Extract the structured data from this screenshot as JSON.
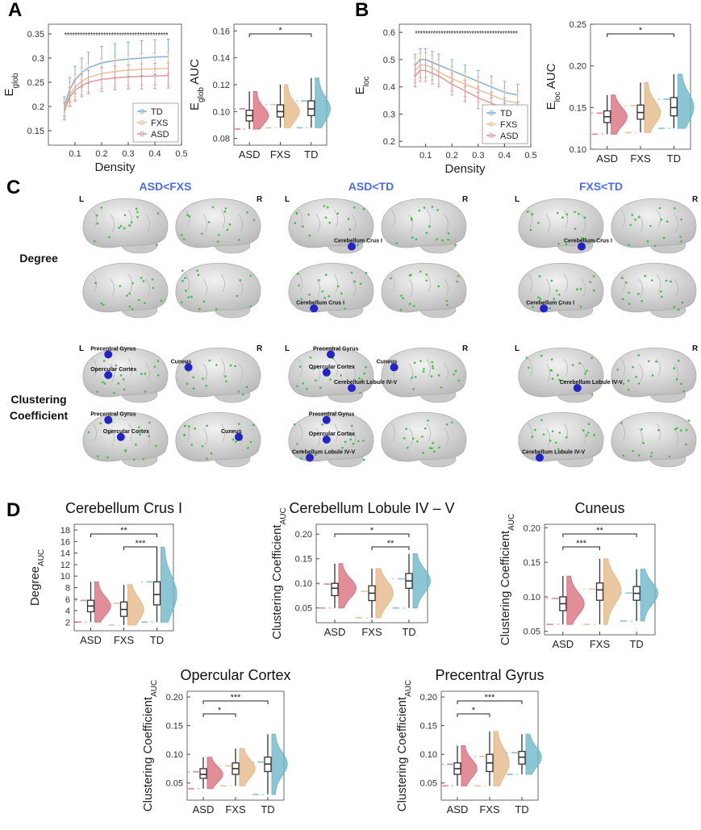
{
  "chart_data": [
    {
      "type": "line",
      "panel": "A",
      "xlabel": "Density",
      "ylabel": "E",
      "ylabel_sub": "glob",
      "x": [
        0.06,
        0.08,
        0.1,
        0.125,
        0.15,
        0.2,
        0.25,
        0.3,
        0.35,
        0.4,
        0.45
      ],
      "xlim": [
        0,
        0.5
      ],
      "xticks": [
        0.1,
        0.2,
        0.3,
        0.4,
        0.5
      ],
      "ylim": [
        0.12,
        0.37
      ],
      "yticks": [
        0.15,
        0.2,
        0.25,
        0.3,
        0.35
      ],
      "legend": "lower right",
      "annotation": {
        "text": "****************************************",
        "y": 0.35
      },
      "series": [
        {
          "name": "TD",
          "color": "#7fb3d9",
          "values": [
            0.2,
            0.235,
            0.255,
            0.27,
            0.28,
            0.29,
            0.295,
            0.298,
            0.3,
            0.302,
            0.303
          ],
          "errors": [
            0.02,
            0.025,
            0.028,
            0.03,
            0.032,
            0.034,
            0.035,
            0.035,
            0.036,
            0.036,
            0.036
          ]
        },
        {
          "name": "FXS",
          "color": "#e8c19a",
          "values": [
            0.195,
            0.225,
            0.24,
            0.252,
            0.26,
            0.268,
            0.272,
            0.275,
            0.277,
            0.278,
            0.279
          ],
          "errors": [
            0.02,
            0.024,
            0.026,
            0.028,
            0.03,
            0.031,
            0.032,
            0.032,
            0.032,
            0.033,
            0.033
          ]
        },
        {
          "name": "ASD",
          "color": "#e09a9a",
          "values": [
            0.19,
            0.22,
            0.233,
            0.243,
            0.25,
            0.256,
            0.259,
            0.261,
            0.262,
            0.263,
            0.264
          ],
          "errors": [
            0.018,
            0.02,
            0.022,
            0.023,
            0.024,
            0.025,
            0.025,
            0.025,
            0.026,
            0.026,
            0.026
          ]
        }
      ]
    },
    {
      "type": "box",
      "ylabel": "E",
      "ylabel_sub": "glob",
      "ylabel_suffix": " AUC",
      "categories": [
        "ASD",
        "FXS",
        "TD"
      ],
      "colors": [
        "#d9727f",
        "#e6b989",
        "#6fb8cb"
      ],
      "ylim": [
        0.075,
        0.165
      ],
      "yticks": [
        0.08,
        {
          "value": 0.1,
          "label": "0.10"
        },
        0.12,
        0.14,
        0.16
      ],
      "median": [
        0.097,
        0.1,
        0.102
      ],
      "q1": [
        0.093,
        0.096,
        0.097
      ],
      "q3": [
        0.101,
        0.105,
        0.108
      ],
      "whisker_low": [
        0.087,
        0.088,
        0.088
      ],
      "whisker_high": [
        0.115,
        0.12,
        0.125
      ],
      "brackets": [
        {
          "from": "ASD",
          "to": "TD",
          "label": "*"
        }
      ]
    },
    {
      "type": "line",
      "panel": "B",
      "xlabel": "Density",
      "ylabel": "E",
      "ylabel_sub": "loc",
      "x": [
        0.06,
        0.08,
        0.1,
        0.125,
        0.15,
        0.2,
        0.25,
        0.3,
        0.35,
        0.4,
        0.45
      ],
      "xlim": [
        0,
        0.5
      ],
      "xticks": [
        0.1,
        0.2,
        0.3,
        0.4,
        0.5
      ],
      "ylim": [
        0.18,
        0.63
      ],
      "yticks": [
        0.2,
        0.3,
        0.4,
        0.5,
        0.6
      ],
      "legend": "lower right",
      "annotation": {
        "text": "****************************************",
        "y": 0.6
      },
      "series": [
        {
          "name": "TD",
          "color": "#7fb3d9",
          "values": [
            0.48,
            0.5,
            0.5,
            0.49,
            0.48,
            0.46,
            0.44,
            0.42,
            0.4,
            0.38,
            0.37
          ],
          "errors": [
            0.04,
            0.04,
            0.04,
            0.04,
            0.04,
            0.04,
            0.04,
            0.04,
            0.04,
            0.04,
            0.04
          ]
        },
        {
          "name": "FXS",
          "color": "#e8c19a",
          "values": [
            0.46,
            0.48,
            0.48,
            0.47,
            0.455,
            0.43,
            0.41,
            0.39,
            0.37,
            0.35,
            0.34
          ],
          "errors": [
            0.045,
            0.045,
            0.045,
            0.045,
            0.045,
            0.045,
            0.045,
            0.045,
            0.045,
            0.045,
            0.045
          ]
        },
        {
          "name": "ASD",
          "color": "#e09a9a",
          "values": [
            0.44,
            0.46,
            0.46,
            0.45,
            0.44,
            0.41,
            0.385,
            0.36,
            0.34,
            0.32,
            0.305
          ],
          "errors": [
            0.04,
            0.04,
            0.04,
            0.04,
            0.04,
            0.04,
            0.04,
            0.04,
            0.04,
            0.04,
            0.04
          ]
        }
      ]
    },
    {
      "type": "box",
      "ylabel": "E",
      "ylabel_sub": "loc",
      "ylabel_suffix": " AUC",
      "categories": [
        "ASD",
        "FXS",
        "TD"
      ],
      "colors": [
        "#d9727f",
        "#e6b989",
        "#6fb8cb"
      ],
      "ylim": [
        0.1,
        0.25
      ],
      "yticks": [
        {
          "value": 0.1,
          "label": "0.10"
        },
        0.15,
        {
          "value": 0.2,
          "label": "0.20"
        },
        0.25
      ],
      "median": [
        0.139,
        0.144,
        0.15
      ],
      "q1": [
        0.132,
        0.136,
        0.14
      ],
      "q3": [
        0.146,
        0.153,
        0.162
      ],
      "whisker_low": [
        0.118,
        0.12,
        0.125
      ],
      "whisker_high": [
        0.165,
        0.18,
        0.19
      ],
      "brackets": [
        {
          "from": "ASD",
          "to": "TD",
          "label": "*"
        }
      ]
    },
    {
      "type": "box",
      "panel": "D",
      "title": "Cerebellum Crus I",
      "ylabel": "Degree",
      "ylabel_sub": "AUC",
      "categories": [
        "ASD",
        "FXS",
        "TD"
      ],
      "colors": [
        "#d9727f",
        "#e6b989",
        "#6fb8cb"
      ],
      "ylim": [
        0.5,
        19
      ],
      "yticks": [
        2,
        4,
        6,
        8,
        10,
        12,
        14,
        16,
        18
      ],
      "median": [
        4.8,
        4.2,
        6.8
      ],
      "q1": [
        3.8,
        3,
        5
      ],
      "q3": [
        5.8,
        5.5,
        9
      ],
      "whisker_low": [
        2,
        1.5,
        2
      ],
      "whisker_high": [
        9,
        8.5,
        15
      ],
      "brackets": [
        {
          "from": "ASD",
          "to": "TD",
          "label": "**"
        },
        {
          "from": "FXS",
          "to": "TD",
          "label": "***"
        }
      ]
    },
    {
      "type": "box",
      "title": "Cerebellum Lobule IV – V",
      "ylabel": "Clustering Coefficient",
      "ylabel_sub": "AUC",
      "categories": [
        "ASD",
        "FXS",
        "TD"
      ],
      "colors": [
        "#d9727f",
        "#e6b989",
        "#6fb8cb"
      ],
      "ylim": [
        0.02,
        0.22
      ],
      "yticks": [
        0.05,
        {
          "value": 0.1,
          "label": "0.10"
        },
        0.15,
        {
          "value": 0.2,
          "label": "0.20"
        }
      ],
      "median": [
        0.09,
        0.08,
        0.105
      ],
      "q1": [
        0.075,
        0.065,
        0.09
      ],
      "q3": [
        0.1,
        0.095,
        0.12
      ],
      "whisker_low": [
        0.05,
        0.03,
        0.05
      ],
      "whisker_high": [
        0.14,
        0.13,
        0.16
      ],
      "brackets": [
        {
          "from": "ASD",
          "to": "TD",
          "label": "*"
        },
        {
          "from": "FXS",
          "to": "TD",
          "label": "**"
        }
      ]
    },
    {
      "type": "box",
      "title": "Cuneus",
      "ylabel": "Clustering Coefficient",
      "ylabel_sub": "AUC",
      "categories": [
        "ASD",
        "FXS",
        "TD"
      ],
      "colors": [
        "#d9727f",
        "#e6b989",
        "#6fb8cb"
      ],
      "ylim": [
        0.045,
        0.205
      ],
      "yticks": [
        0.05,
        {
          "value": 0.1,
          "label": "0.10"
        },
        0.15,
        {
          "value": 0.2,
          "label": "0.20"
        }
      ],
      "median": [
        0.09,
        0.11,
        0.105
      ],
      "q1": [
        0.08,
        0.095,
        0.095
      ],
      "q3": [
        0.1,
        0.12,
        0.115
      ],
      "whisker_low": [
        0.06,
        0.06,
        0.065
      ],
      "whisker_high": [
        0.13,
        0.155,
        0.14
      ],
      "brackets": [
        {
          "from": "ASD",
          "to": "TD",
          "label": "**"
        },
        {
          "from": "ASD",
          "to": "FXS",
          "label": "***"
        }
      ]
    },
    {
      "type": "box",
      "title": "Opercular Cortex",
      "ylabel": "Clustering Coefficient",
      "ylabel_sub": "AUC",
      "categories": [
        "ASD",
        "FXS",
        "TD"
      ],
      "colors": [
        "#d9727f",
        "#e6b989",
        "#6fb8cb"
      ],
      "ylim": [
        0.02,
        0.21
      ],
      "yticks": [
        0.05,
        {
          "value": 0.1,
          "label": "0.10"
        },
        0.15,
        {
          "value": 0.2,
          "label": "0.20"
        }
      ],
      "median": [
        0.065,
        0.075,
        0.083
      ],
      "q1": [
        0.058,
        0.065,
        0.07
      ],
      "q3": [
        0.075,
        0.085,
        0.095
      ],
      "whisker_low": [
        0.04,
        0.045,
        0.03
      ],
      "whisker_high": [
        0.095,
        0.11,
        0.135
      ],
      "brackets": [
        {
          "from": "ASD",
          "to": "TD",
          "label": "***"
        },
        {
          "from": "ASD",
          "to": "FXS",
          "label": "*"
        }
      ]
    },
    {
      "type": "box",
      "title": "Precentral Gyrus",
      "ylabel": "Clustering Coefficient",
      "ylabel_sub": "AUC",
      "categories": [
        "ASD",
        "FXS",
        "TD"
      ],
      "colors": [
        "#d9727f",
        "#e6b989",
        "#6fb8cb"
      ],
      "ylim": [
        0.02,
        0.21
      ],
      "yticks": [
        0.05,
        {
          "value": 0.1,
          "label": "0.10"
        },
        0.15,
        {
          "value": 0.2,
          "label": "0.20"
        }
      ],
      "median": [
        0.075,
        0.085,
        0.095
      ],
      "q1": [
        0.065,
        0.07,
        0.083
      ],
      "q3": [
        0.085,
        0.1,
        0.105
      ],
      "whisker_low": [
        0.045,
        0.045,
        0.065
      ],
      "whisker_high": [
        0.115,
        0.14,
        0.135
      ],
      "brackets": [
        {
          "from": "ASD",
          "to": "TD",
          "label": "***"
        },
        {
          "from": "ASD",
          "to": "FXS",
          "label": "*"
        }
      ]
    }
  ],
  "panel_c": {
    "label": "C",
    "columns": [
      "ASD<FXS",
      "ASD<TD",
      "FXS<TD"
    ],
    "hemispheres": [
      "L",
      "R"
    ],
    "rows": [
      [
        "Degree"
      ],
      [
        "Clustering",
        "Coefficient"
      ]
    ],
    "cells": [
      [
        {
          "lateral": [],
          "medial": []
        },
        {
          "lateral": [
            "Cerebellum Crus I"
          ],
          "medial": [
            "Cerebellum Crus I"
          ]
        },
        {
          "lateral": [
            "Cerebellum Crus I"
          ],
          "medial": [
            "Cerebellum Crus I"
          ]
        }
      ],
      [
        {
          "lateral": [
            "Precentral Gyrus",
            "Opercular Cortex",
            "Cuneus"
          ],
          "medial": [
            "Precentral Gyrus",
            "Opercular Cortex",
            "Cuneus"
          ]
        },
        {
          "lateral": [
            "Precentral Gyrus",
            "Opercular Cortex",
            "Cuneus",
            "Cerebellum Lobule IV-V"
          ],
          "medial": [
            "Precentral Gyrus",
            "Opercular Cortex",
            "Cerebellum Lobule IV-V"
          ]
        },
        {
          "lateral": [
            "Cerebellum Lobule IV-V"
          ],
          "medial": [
            "Cerebellum Lobule IV-V"
          ]
        }
      ]
    ]
  }
}
